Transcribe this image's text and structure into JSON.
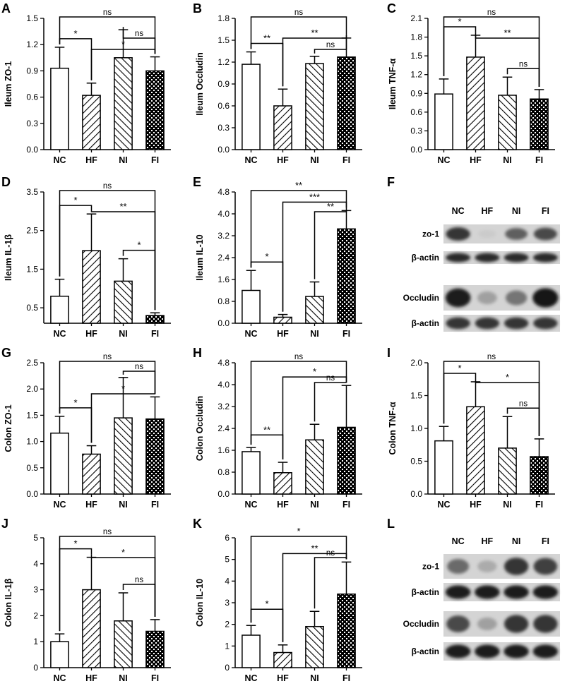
{
  "chart_data": [
    {
      "panel": "A",
      "type": "bar",
      "ylabel": "Ileum ZO-1",
      "categories": [
        "NC",
        "HF",
        "NI",
        "FI"
      ],
      "values": [
        0.93,
        0.62,
        1.05,
        0.9
      ],
      "errors": [
        0.24,
        0.14,
        0.32,
        0.16
      ],
      "ylim": [
        0,
        1.5
      ],
      "yticks": [
        "0.0",
        "0.3",
        "0.6",
        "0.9",
        "1.2",
        "1.5"
      ],
      "sig": [
        {
          "a": 0,
          "b": 3,
          "label": "ns"
        },
        {
          "a": 0,
          "b": 1,
          "label": "*"
        },
        {
          "a": 2,
          "b": 3,
          "label": "ns"
        },
        {
          "a": 1,
          "b": 3,
          "label": "*"
        }
      ]
    },
    {
      "panel": "B",
      "type": "bar",
      "ylabel": "Ileum Occludin",
      "categories": [
        "NC",
        "HF",
        "NI",
        "FI"
      ],
      "values": [
        1.17,
        0.6,
        1.18,
        1.27
      ],
      "errors": [
        0.17,
        0.23,
        0.1,
        0.26
      ],
      "ylim": [
        0,
        1.8
      ],
      "yticks": [
        "0.0",
        "0.3",
        "0.6",
        "0.9",
        "1.2",
        "1.5",
        "1.8"
      ],
      "sig": [
        {
          "a": 0,
          "b": 3,
          "label": "ns"
        },
        {
          "a": 0,
          "b": 1,
          "label": "**"
        },
        {
          "a": 1,
          "b": 3,
          "label": "**"
        },
        {
          "a": 2,
          "b": 3,
          "label": "ns"
        }
      ]
    },
    {
      "panel": "C",
      "type": "bar",
      "ylabel": "Ileum TNF-α",
      "categories": [
        "NC",
        "HF",
        "NI",
        "FI"
      ],
      "values": [
        0.89,
        1.48,
        0.87,
        0.81
      ],
      "errors": [
        0.24,
        0.35,
        0.29,
        0.15
      ],
      "ylim": [
        0,
        2.1
      ],
      "yticks": [
        "0.0",
        "0.3",
        "0.6",
        "0.9",
        "1.2",
        "1.5",
        "1.8",
        "2.1"
      ],
      "sig": [
        {
          "a": 0,
          "b": 3,
          "label": "ns"
        },
        {
          "a": 0,
          "b": 1,
          "label": "*"
        },
        {
          "a": 1,
          "b": 3,
          "label": "**"
        },
        {
          "a": 2,
          "b": 3,
          "label": "ns"
        }
      ]
    },
    {
      "panel": "D",
      "type": "bar",
      "ylabel": "Ileum IL-1β",
      "categories": [
        "NC",
        "HF",
        "NI",
        "FI"
      ],
      "values": [
        0.8,
        1.98,
        1.19,
        0.3
      ],
      "errors": [
        0.44,
        0.95,
        0.58,
        0.07
      ],
      "ylim": [
        0.1,
        3.5
      ],
      "yticks": [
        "0.5",
        "1.5",
        "2.5",
        "3.5"
      ],
      "sig": [
        {
          "a": 0,
          "b": 3,
          "label": "ns"
        },
        {
          "a": 0,
          "b": 1,
          "label": "*"
        },
        {
          "a": 1,
          "b": 3,
          "label": "**"
        },
        {
          "a": 2,
          "b": 3,
          "label": "*"
        }
      ]
    },
    {
      "panel": "E",
      "type": "bar",
      "ylabel": "Ileum IL-10",
      "categories": [
        "NC",
        "HF",
        "NI",
        "FI"
      ],
      "values": [
        1.2,
        0.22,
        0.98,
        3.45
      ],
      "errors": [
        0.73,
        0.1,
        0.53,
        0.67
      ],
      "ylim": [
        0,
        4.8
      ],
      "yticks": [
        "0.0",
        "0.8",
        "1.6",
        "2.4",
        "3.2",
        "4.0",
        "4.8"
      ],
      "sig": [
        {
          "a": 0,
          "b": 3,
          "label": "**"
        },
        {
          "a": 1,
          "b": 3,
          "label": "***"
        },
        {
          "a": 2,
          "b": 3,
          "label": "**"
        },
        {
          "a": 0,
          "b": 1,
          "label": "*"
        }
      ]
    },
    {
      "panel": "G",
      "type": "bar",
      "ylabel": "Colon ZO-1",
      "categories": [
        "NC",
        "HF",
        "NI",
        "FI"
      ],
      "values": [
        1.16,
        0.76,
        1.45,
        1.43
      ],
      "errors": [
        0.32,
        0.16,
        0.77,
        0.42
      ],
      "ylim": [
        0,
        2.5
      ],
      "yticks": [
        "0.0",
        "0.5",
        "1.0",
        "1.5",
        "2.0",
        "2.5"
      ],
      "sig": [
        {
          "a": 0,
          "b": 3,
          "label": "ns"
        },
        {
          "a": 2,
          "b": 3,
          "label": "ns"
        },
        {
          "a": 0,
          "b": 1,
          "label": "*"
        },
        {
          "a": 1,
          "b": 3,
          "label": "*"
        }
      ]
    },
    {
      "panel": "H",
      "type": "bar",
      "ylabel": "Colon Occludin",
      "categories": [
        "NC",
        "HF",
        "NI",
        "FI"
      ],
      "values": [
        1.55,
        0.78,
        1.98,
        2.44
      ],
      "errors": [
        0.15,
        0.38,
        0.57,
        1.53
      ],
      "ylim": [
        0,
        4.8
      ],
      "yticks": [
        "0.0",
        "0.8",
        "1.6",
        "2.4",
        "3.2",
        "4.0",
        "4.8"
      ],
      "sig": [
        {
          "a": 0,
          "b": 3,
          "label": "ns"
        },
        {
          "a": 1,
          "b": 3,
          "label": "*"
        },
        {
          "a": 2,
          "b": 3,
          "label": "ns"
        },
        {
          "a": 0,
          "b": 1,
          "label": "**"
        }
      ]
    },
    {
      "panel": "I",
      "type": "bar",
      "ylabel": "Colon TNF-α",
      "categories": [
        "NC",
        "HF",
        "NI",
        "FI"
      ],
      "values": [
        0.81,
        1.33,
        0.7,
        0.57
      ],
      "errors": [
        0.22,
        0.38,
        0.48,
        0.27
      ],
      "ylim": [
        0,
        2.0
      ],
      "yticks": [
        "0.0",
        "0.5",
        "1.0",
        "1.5",
        "2.0"
      ],
      "sig": [
        {
          "a": 0,
          "b": 3,
          "label": "ns"
        },
        {
          "a": 0,
          "b": 1,
          "label": "*"
        },
        {
          "a": 1,
          "b": 3,
          "label": "*"
        },
        {
          "a": 2,
          "b": 3,
          "label": "ns"
        }
      ]
    },
    {
      "panel": "J",
      "type": "bar",
      "ylabel": "Colon IL-1β",
      "categories": [
        "NC",
        "HF",
        "NI",
        "FI"
      ],
      "values": [
        1.0,
        3.0,
        1.8,
        1.4
      ],
      "errors": [
        0.3,
        1.25,
        1.08,
        0.45
      ],
      "ylim": [
        0,
        5
      ],
      "yticks": [
        "0",
        "1",
        "2",
        "3",
        "4",
        "5"
      ],
      "sig": [
        {
          "a": 0,
          "b": 3,
          "label": "ns"
        },
        {
          "a": 0,
          "b": 1,
          "label": "*"
        },
        {
          "a": 1,
          "b": 3,
          "label": "*"
        },
        {
          "a": 2,
          "b": 3,
          "label": "ns"
        }
      ]
    },
    {
      "panel": "K",
      "type": "bar",
      "ylabel": "Colon IL-10",
      "categories": [
        "NC",
        "HF",
        "NI",
        "FI"
      ],
      "values": [
        1.5,
        0.7,
        1.9,
        3.4
      ],
      "errors": [
        0.45,
        0.35,
        0.7,
        1.48
      ],
      "ylim": [
        0,
        6
      ],
      "yticks": [
        "0",
        "1",
        "2",
        "3",
        "4",
        "5",
        "6"
      ],
      "sig": [
        {
          "a": 0,
          "b": 3,
          "label": "*"
        },
        {
          "a": 1,
          "b": 3,
          "label": "**"
        },
        {
          "a": 2,
          "b": 3,
          "label": "ns"
        },
        {
          "a": 0,
          "b": 1,
          "label": "*"
        }
      ]
    }
  ],
  "blots": [
    {
      "panel": "F",
      "lanes": [
        "NC",
        "HF",
        "NI",
        "FI"
      ],
      "rows": [
        {
          "label": "zo-1",
          "intensity": [
            0.85,
            0.15,
            0.65,
            0.75
          ]
        },
        {
          "label": "β-actin",
          "intensity": [
            0.9,
            0.9,
            0.9,
            0.9
          ]
        },
        {
          "label": "Occludin",
          "intensity": [
            0.95,
            0.35,
            0.55,
            1.0
          ]
        },
        {
          "label": "β-actin",
          "intensity": [
            0.85,
            0.85,
            0.85,
            0.85
          ]
        }
      ]
    },
    {
      "panel": "L",
      "lanes": [
        "NC",
        "HF",
        "NI",
        "FI"
      ],
      "rows": [
        {
          "label": "zo-1",
          "intensity": [
            0.6,
            0.3,
            0.85,
            0.8
          ]
        },
        {
          "label": "β-actin",
          "intensity": [
            0.95,
            0.95,
            0.95,
            0.95
          ]
        },
        {
          "label": "Occludin",
          "intensity": [
            0.75,
            0.35,
            0.85,
            0.85
          ]
        },
        {
          "label": "β-actin",
          "intensity": [
            0.95,
            0.95,
            0.95,
            0.95
          ]
        }
      ]
    }
  ]
}
